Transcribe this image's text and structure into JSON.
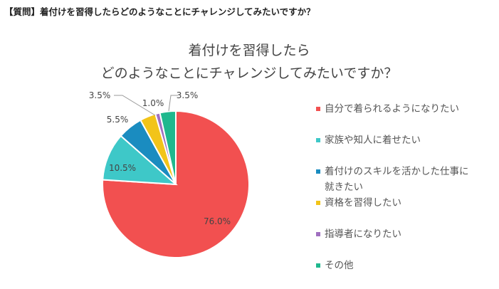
{
  "question": "【質問】着付けを習得したらどのようなことにチャレンジしてみたいですか？",
  "chart_data": {
    "type": "pie",
    "title_lines": [
      "着付けを習得したら",
      "どのようなことにチャレンジしてみたいですか？"
    ],
    "categories": [
      "自分で着られるようになりたい",
      "家族や知人に着せたい",
      "着付けのスキルを活かした仕事に就きたい",
      "資格を習得したい",
      "指導者になりたい",
      "その他"
    ],
    "values": [
      76.0,
      10.5,
      5.5,
      3.5,
      1.0,
      3.5
    ],
    "labels": [
      "76.0%",
      "10.5%",
      "5.5%",
      "3.5%",
      "1.0%",
      "3.5%"
    ],
    "colors": [
      "#f25050",
      "#3ec8c8",
      "#1a8cc0",
      "#f2c419",
      "#a070c0",
      "#1fb88e"
    ],
    "legend_position": "right"
  }
}
